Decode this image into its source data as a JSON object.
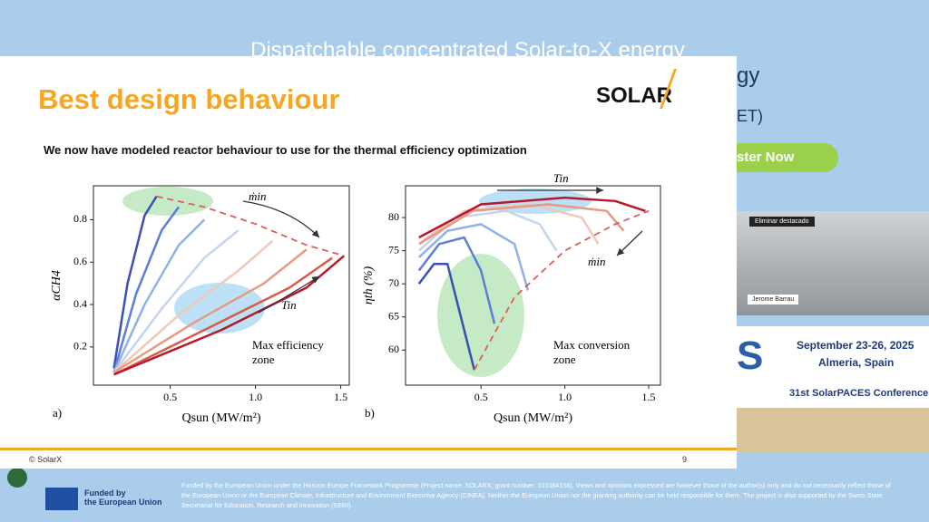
{
  "background": {
    "title": "Dispatchable concentrated Solar-to-X energy",
    "title_rest": "gy",
    "title_tail": "ET)",
    "register": "ster Now",
    "dates": "September 23-26, 2025",
    "place": "Almeria, Spain",
    "conference": "31st SolarPACES Conference",
    "big_letters": "S",
    "video_button": "Eliminar destacado",
    "participant": "Jerome Barrau",
    "eu_label": "Funded by\nthe European Union",
    "disclaimer": "Funded by the European Union under the Horizon Europe Framework Programme (Project name: SOLARX; grant number: 101084158). Views and opinions expressed are however those of the author(s) only and do not necessarily reflect those of the European Union or the European Climate, Infrastructure and Environment Executive Agency (CINEA). Neither the European Union nor the granting authority can be held responsible for them. The project is also supported by the Swiss State Secretariat for Education, Research and Innovation (SERI)."
  },
  "slide": {
    "title": "Best design behaviour",
    "logo": "SOLAR",
    "subtitle": "We now have modeled reactor behaviour to use for the thermal efficiency optimization",
    "footer_left": "© SolarX",
    "page_number": "9",
    "charts": [
      {
        "type": "line",
        "panel": "a)",
        "xlabel": "Qsun (MW/m²)",
        "ylabel": "αCH4",
        "annotation": "Max efficiency\nzone",
        "arrow_top": "ṁin",
        "arrow_bottom": "Tin",
        "xlim": [
          0.05,
          1.55
        ],
        "ylim": [
          0.02,
          0.96
        ],
        "xticks": [
          {
            "value": 0.5,
            "label": "0.5"
          },
          {
            "value": 1,
            "label": "1.0"
          },
          {
            "value": 1.5,
            "label": "1.5"
          }
        ],
        "yticks": [
          0.2,
          0.4,
          0.6,
          0.8
        ],
        "series": [
          {
            "color": "#3b4fb5",
            "x": [
              0.17,
              0.25,
              0.35,
              0.42
            ],
            "y": [
              0.1,
              0.5,
              0.82,
              0.91
            ]
          },
          {
            "color": "#5b7fd6",
            "x": [
              0.17,
              0.3,
              0.45,
              0.55
            ],
            "y": [
              0.08,
              0.45,
              0.75,
              0.86
            ]
          },
          {
            "color": "#8fb0e8",
            "x": [
              0.17,
              0.35,
              0.55,
              0.7
            ],
            "y": [
              0.08,
              0.4,
              0.68,
              0.8
            ]
          },
          {
            "color": "#c4d4ee",
            "x": [
              0.17,
              0.45,
              0.7,
              0.9
            ],
            "y": [
              0.08,
              0.38,
              0.62,
              0.75
            ]
          },
          {
            "color": "#f0c8b8",
            "x": [
              0.17,
              0.55,
              0.9,
              1.1
            ],
            "y": [
              0.08,
              0.35,
              0.56,
              0.7
            ]
          },
          {
            "color": "#e89a80",
            "x": [
              0.17,
              0.65,
              1.05,
              1.3
            ],
            "y": [
              0.08,
              0.32,
              0.5,
              0.66
            ]
          },
          {
            "color": "#d85c4a",
            "x": [
              0.17,
              0.75,
              1.2,
              1.45
            ],
            "y": [
              0.07,
              0.3,
              0.48,
              0.62
            ]
          },
          {
            "color": "#b8182c",
            "x": [
              0.17,
              0.8,
              1.3,
              1.52
            ],
            "y": [
              0.07,
              0.28,
              0.48,
              0.63
            ]
          },
          {
            "color": "#d9605a",
            "dashed": true,
            "x": [
              0.42,
              0.7,
              1.0,
              1.3,
              1.52
            ],
            "y": [
              0.91,
              0.86,
              0.78,
              0.68,
              0.63
            ]
          }
        ]
      },
      {
        "type": "line",
        "panel": "b)",
        "xlabel": "Qsun (MW/m²)",
        "ylabel": "ηth (%)",
        "annotation": "Max conversion\nzone",
        "arrow_top": "Tin",
        "arrow_bottom": "ṁin",
        "xlim": [
          0.05,
          1.57
        ],
        "ylim": [
          54.7,
          84.8
        ],
        "xticks": [
          {
            "value": 0.5,
            "label": "0.5"
          },
          {
            "value": 1,
            "label": "1.0"
          },
          {
            "value": 1.5,
            "label": "1.5"
          }
        ],
        "yticks": [
          60,
          65,
          70,
          75,
          80
        ],
        "series": [
          {
            "color": "#3b4fb5",
            "x": [
              0.13,
              0.22,
              0.3,
              0.38,
              0.46
            ],
            "y": [
              70,
              73,
              73,
              65,
              57
            ]
          },
          {
            "color": "#5b7fd6",
            "x": [
              0.13,
              0.25,
              0.4,
              0.5,
              0.58
            ],
            "y": [
              72,
              76,
              77,
              72,
              64
            ]
          },
          {
            "color": "#8fb0e8",
            "x": [
              0.13,
              0.3,
              0.5,
              0.7,
              0.78
            ],
            "y": [
              74,
              78,
              79,
              76,
              69
            ]
          },
          {
            "color": "#c4d4ee",
            "x": [
              0.13,
              0.35,
              0.65,
              0.85,
              0.95
            ],
            "y": [
              75,
              80,
              81,
              79,
              75
            ]
          },
          {
            "color": "#f0c8b8",
            "x": [
              0.13,
              0.4,
              0.8,
              1.1,
              1.2
            ],
            "y": [
              76,
              81,
              82,
              80,
              76
            ]
          },
          {
            "color": "#e89a80",
            "x": [
              0.13,
              0.45,
              0.9,
              1.25,
              1.35
            ],
            "y": [
              76,
              81,
              82,
              81,
              78
            ]
          },
          {
            "color": "#b8182c",
            "x": [
              0.13,
              0.5,
              1.0,
              1.3,
              1.48
            ],
            "y": [
              77,
              82,
              83,
              82.5,
              81
            ]
          },
          {
            "color": "#d9605a",
            "dashed": true,
            "x": [
              0.46,
              0.7,
              1.0,
              1.3,
              1.5
            ],
            "y": [
              57,
              68,
              75,
              79,
              81
            ]
          }
        ]
      }
    ]
  }
}
